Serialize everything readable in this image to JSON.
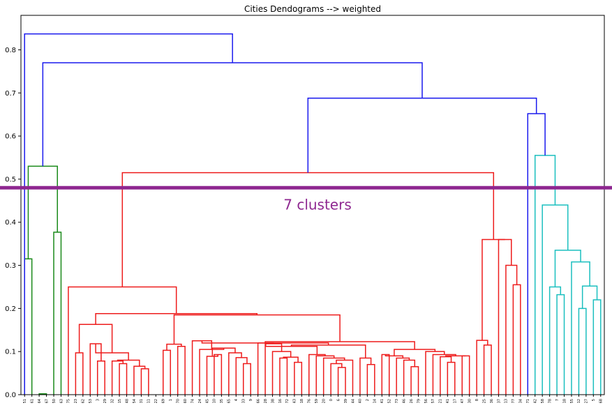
{
  "chart_data": {
    "type": "dendrogram",
    "title": "Cities Dendograms --> weighted",
    "xlabel": "",
    "ylabel": "",
    "ylim": [
      0,
      0.88
    ],
    "yticks": [
      "0.0",
      "0.1",
      "0.2",
      "0.3",
      "0.4",
      "0.5",
      "0.6",
      "0.7",
      "0.8"
    ],
    "grid": false,
    "leaves": [
      "51",
      "61",
      "64",
      "67",
      "50",
      "63",
      "75",
      "23",
      "62",
      "53",
      "3",
      "29",
      "32",
      "15",
      "48",
      "54",
      "31",
      "11",
      "22",
      "69",
      "1",
      "70",
      "60",
      "74",
      "24",
      "45",
      "10",
      "35",
      "65",
      "4",
      "33",
      "9",
      "66",
      "28",
      "38",
      "16",
      "72",
      "43",
      "18",
      "76",
      "59",
      "20",
      "0",
      "6",
      "39",
      "44",
      "40",
      "2",
      "14",
      "41",
      "52",
      "73",
      "46",
      "26",
      "79",
      "56",
      "57",
      "21",
      "41",
      "17",
      "47",
      "30",
      "8",
      "25",
      "36",
      "37",
      "13",
      "77",
      "34",
      "71",
      "42",
      "58",
      "78",
      "7",
      "18",
      "55",
      "12",
      "27",
      "5",
      "68"
    ],
    "cut_line": {
      "height": 0.48,
      "color": "#8e2790"
    },
    "annotation": {
      "text": "7 clusters",
      "color": "#8e2790"
    },
    "colors": {
      "green": "#1a8a1a",
      "red": "#ee1c1c",
      "cyan": "#1bbfbf",
      "blue": "#1a1aee"
    },
    "merges": [
      {
        "a": "L0",
        "b": "L1",
        "h": 0.315,
        "c": "green"
      },
      {
        "a": "L2",
        "b": "L3",
        "h": 0.002,
        "c": "green"
      },
      {
        "a": "L4",
        "b": "L5",
        "h": 0.377,
        "c": "green"
      },
      {
        "a": "M0",
        "b": "M2",
        "h": 0.53,
        "c": "green"
      },
      {
        "a": "L7",
        "b": "L8",
        "h": 0.097,
        "c": "red"
      },
      {
        "a": "L10",
        "b": "L11",
        "h": 0.078,
        "c": "red"
      },
      {
        "a": "L9",
        "b": "M5",
        "h": 0.118,
        "c": "red"
      },
      {
        "a": "L13",
        "b": "L14",
        "h": 0.072,
        "c": "red"
      },
      {
        "a": "L12",
        "b": "M7",
        "h": 0.078,
        "c": "red"
      },
      {
        "a": "L16",
        "b": "L17",
        "h": 0.06,
        "c": "red"
      },
      {
        "a": "L15",
        "b": "M9",
        "h": 0.066,
        "c": "red"
      },
      {
        "a": "M8",
        "b": "M10",
        "h": 0.08,
        "c": "red"
      },
      {
        "a": "M6",
        "b": "M11",
        "h": 0.097,
        "c": "red"
      },
      {
        "a": "M4",
        "b": "M12",
        "h": 0.163,
        "c": "red"
      },
      {
        "a": "L19",
        "b": "L20",
        "h": 0.103,
        "c": "red"
      },
      {
        "a": "L21",
        "b": "L22",
        "h": 0.112,
        "c": "red"
      },
      {
        "a": "M14",
        "b": "M15",
        "h": 0.117,
        "c": "red"
      },
      {
        "a": "L26",
        "b": "L27",
        "h": 0.093,
        "c": "red"
      },
      {
        "a": "L25",
        "b": "M17",
        "h": 0.089,
        "c": "red"
      },
      {
        "a": "L30",
        "b": "L31",
        "h": 0.072,
        "c": "red"
      },
      {
        "a": "L29",
        "b": "M19",
        "h": 0.086,
        "c": "red"
      },
      {
        "a": "L28",
        "b": "M20",
        "h": 0.097,
        "c": "red"
      },
      {
        "a": "M18",
        "b": "M21",
        "h": 0.108,
        "c": "red"
      },
      {
        "a": "L24",
        "b": "M22",
        "h": 0.105,
        "c": "red"
      },
      {
        "a": "L23",
        "b": "M23",
        "h": 0.125,
        "c": "red"
      },
      {
        "a": "L35",
        "b": "L36",
        "h": 0.085,
        "c": "red"
      },
      {
        "a": "L37",
        "b": "L38",
        "h": 0.075,
        "c": "red"
      },
      {
        "a": "M25",
        "b": "M26",
        "h": 0.087,
        "c": "red"
      },
      {
        "a": "L34",
        "b": "M27",
        "h": 0.1,
        "c": "red"
      },
      {
        "a": "L33",
        "b": "M28",
        "h": 0.118,
        "c": "red"
      },
      {
        "a": "L32",
        "b": "M29",
        "h": 0.12,
        "c": "red"
      },
      {
        "a": "L43",
        "b": "L44",
        "h": 0.063,
        "c": "red"
      },
      {
        "a": "L42",
        "b": "M31",
        "h": 0.072,
        "c": "red"
      },
      {
        "a": "M32",
        "b": "L45",
        "h": 0.08,
        "c": "red"
      },
      {
        "a": "L41",
        "b": "M33",
        "h": 0.085,
        "c": "red"
      },
      {
        "a": "L40",
        "b": "M34",
        "h": 0.09,
        "c": "red"
      },
      {
        "a": "L39",
        "b": "M35",
        "h": 0.093,
        "c": "red"
      },
      {
        "a": "M30",
        "b": "M36",
        "h": 0.112,
        "c": "red"
      },
      {
        "a": "L47",
        "b": "L48",
        "h": 0.07,
        "c": "red"
      },
      {
        "a": "L46",
        "b": "M38",
        "h": 0.085,
        "c": "red"
      },
      {
        "a": "M37",
        "b": "M39",
        "h": 0.115,
        "c": "red"
      },
      {
        "a": "M24",
        "b": "M40",
        "h": 0.12,
        "c": "red"
      },
      {
        "a": "L49",
        "b": "L50",
        "h": 0.093,
        "c": "red"
      },
      {
        "a": "L53",
        "b": "L54",
        "h": 0.065,
        "c": "red"
      },
      {
        "a": "L52",
        "b": "M43",
        "h": 0.08,
        "c": "red"
      },
      {
        "a": "L51",
        "b": "M44",
        "h": 0.085,
        "c": "red"
      },
      {
        "a": "M42",
        "b": "M45",
        "h": 0.09,
        "c": "red"
      },
      {
        "a": "L58",
        "b": "L59",
        "h": 0.075,
        "c": "red"
      },
      {
        "a": "L57",
        "b": "M47",
        "h": 0.088,
        "c": "red"
      },
      {
        "a": "L60",
        "b": "L61",
        "h": 0.09,
        "c": "red"
      },
      {
        "a": "M48",
        "b": "M49",
        "h": 0.09,
        "c": "red"
      },
      {
        "a": "L56",
        "b": "M50",
        "h": 0.093,
        "c": "red"
      },
      {
        "a": "L55",
        "b": "M51",
        "h": 0.1,
        "c": "red"
      },
      {
        "a": "M46",
        "b": "M52",
        "h": 0.105,
        "c": "red"
      },
      {
        "a": "M41",
        "b": "M53",
        "h": 0.123,
        "c": "red"
      },
      {
        "a": "M16",
        "b": "M54",
        "h": 0.185,
        "c": "red"
      },
      {
        "a": "M13",
        "b": "M55",
        "h": 0.188,
        "c": "red"
      },
      {
        "a": "L6",
        "b": "M56",
        "h": 0.25,
        "c": "red"
      },
      {
        "a": "L63",
        "b": "L64",
        "h": 0.115,
        "c": "red"
      },
      {
        "a": "L62",
        "b": "M58",
        "h": 0.126,
        "c": "red"
      },
      {
        "a": "L67",
        "b": "L68",
        "h": 0.255,
        "c": "red"
      },
      {
        "a": "L66",
        "b": "M60",
        "h": 0.3,
        "c": "red"
      },
      {
        "a": "L65",
        "b": "M61",
        "h": 0.36,
        "c": "red"
      },
      {
        "a": "M59",
        "b": "M62",
        "h": 0.36,
        "c": "red"
      },
      {
        "a": "M57",
        "b": "M63",
        "h": 0.515,
        "c": "red"
      },
      {
        "a": "L73",
        "b": "L74",
        "h": 0.232,
        "c": "cyan"
      },
      {
        "a": "L72",
        "b": "M65",
        "h": 0.25,
        "c": "cyan"
      },
      {
        "a": "L76",
        "b": "L77",
        "h": 0.2,
        "c": "cyan"
      },
      {
        "a": "L78",
        "b": "L79",
        "h": 0.22,
        "c": "cyan"
      },
      {
        "a": "M67",
        "b": "M68",
        "h": 0.252,
        "c": "cyan"
      },
      {
        "a": "L75",
        "b": "M69",
        "h": 0.308,
        "c": "cyan"
      },
      {
        "a": "M66",
        "b": "M70",
        "h": 0.335,
        "c": "cyan"
      },
      {
        "a": "L71",
        "b": "M71",
        "h": 0.44,
        "c": "cyan"
      },
      {
        "a": "L70",
        "b": "M72",
        "h": 0.555,
        "c": "cyan"
      },
      {
        "a": "L69",
        "b": "M73",
        "h": 0.652,
        "c": "blue"
      },
      {
        "a": "M64",
        "b": "M74",
        "h": 0.688,
        "c": "blue"
      },
      {
        "a": "M3",
        "b": "M75",
        "h": 0.77,
        "c": "blue"
      },
      {
        "a": "L69",
        "b": "M76",
        "h": 0.0,
        "c": "skip"
      }
    ],
    "root": {
      "a": "L0",
      "b": "M76",
      "h": 0.837,
      "c": "blue"
    }
  }
}
